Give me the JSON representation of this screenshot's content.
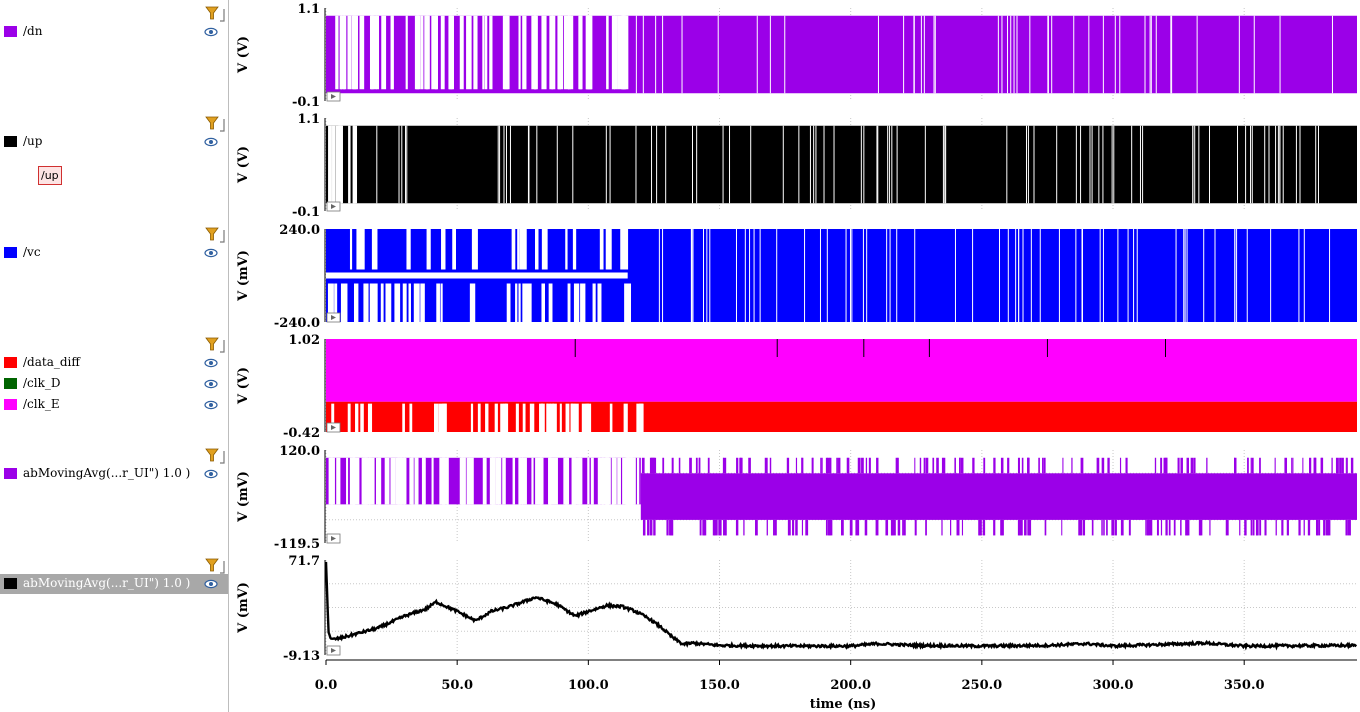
{
  "colors": {
    "dn": "#9b00e8",
    "up": "#000000",
    "vc": "#0000ff",
    "data_diff": "#ff0000",
    "clk_D": "#006400",
    "clk_E": "#ff00ff",
    "avg1": "#9b00e8",
    "avg2": "#000000",
    "grid": "#c8c8c8",
    "filter_icon": "#e0a020",
    "eye_icon": "#3060a0",
    "selected_row": "#a8a8a8"
  },
  "legend": {
    "rows": [
      {
        "key": "dn",
        "label": "/dn"
      },
      {
        "key": "up",
        "label": "/up"
      },
      {
        "key": "vc",
        "label": "/vc"
      },
      {
        "key": "data_diff",
        "label": "/data_diff"
      },
      {
        "key": "clk_D",
        "label": "/clk_D"
      },
      {
        "key": "clk_E",
        "label": "/clk_E"
      },
      {
        "key": "avg1",
        "label": "abMovingAvg(...r_UI\") 1.0 )"
      },
      {
        "key": "avg2",
        "label": "abMovingAvg(...r_UI\") 1.0 )",
        "selected": true
      }
    ],
    "up_tag": "/up",
    "icons": {
      "eye": "eye-icon",
      "filter": "filter-icon",
      "expand": "expand-arrow-icon"
    }
  },
  "chart_data": {
    "type": "line",
    "xlabel": "time (ns)",
    "x_ticks": [
      "0.0",
      "50.0",
      "100.0",
      "150.0",
      "200.0",
      "250.0",
      "300.0",
      "350.0"
    ],
    "x_tick_values": [
      0,
      50,
      100,
      150,
      200,
      250,
      300,
      350
    ],
    "xlim": [
      0,
      393
    ],
    "grid": true,
    "panels": [
      {
        "ylabel": "V (V)",
        "ytop": "1.1",
        "ybot": "-0.1",
        "ylim": [
          -0.1,
          1.1
        ],
        "series": [
          {
            "name": "/dn",
            "kind": "digital",
            "low": 0.0,
            "high": 1.0,
            "dense_after": 115
          }
        ]
      },
      {
        "ylabel": "V (V)",
        "ytop": "1.1",
        "ybot": "-0.1",
        "ylim": [
          -0.1,
          1.1
        ],
        "series": [
          {
            "name": "/up",
            "kind": "digital",
            "low": 0.0,
            "high": 1.0,
            "dense_after": 12
          }
        ]
      },
      {
        "ylabel": "V (mV)",
        "ytop": "240.0",
        "ybot": "-240.0",
        "ylim": [
          -240,
          240
        ],
        "series": [
          {
            "name": "/vc",
            "kind": "digital",
            "low": -240,
            "high": 240,
            "mid": 0,
            "dense_after": 115
          }
        ]
      },
      {
        "ylabel": "V (V)",
        "ytop": "1.02",
        "ybot": "-0.42",
        "ylim": [
          -0.42,
          1.02
        ],
        "series": [
          {
            "name": "/data_diff",
            "kind": "band",
            "low": -0.42,
            "high": 0.05
          },
          {
            "name": "/clk_D",
            "kind": "band",
            "low": -0.42,
            "high": 0.05
          },
          {
            "name": "/clk_E",
            "kind": "band",
            "low": 0.05,
            "high": 1.02
          }
        ]
      },
      {
        "ylabel": "V (mV)",
        "ytop": "120.0",
        "ybot": "-119.5",
        "ylim": [
          -119.5,
          120.0
        ],
        "series": [
          {
            "name": "abMovingAvg(...r_UI\") 1.0 )",
            "kind": "multilevel",
            "levels": [
              100,
              60,
              20,
              -20,
              -60,
              -100
            ]
          }
        ]
      },
      {
        "ylabel": "V (mV)",
        "ytop": "71.7",
        "ybot": "-9.13",
        "ylim": [
          -9.13,
          71.7
        ],
        "series": [
          {
            "name": "abMovingAvg(...r_UI\") 1.0 )",
            "kind": "analog",
            "x": [
              0,
              1,
              2,
              5,
              10,
              20,
              30,
              38,
              42,
              50,
              57,
              63,
              70,
              80,
              88,
              95,
              100,
              107,
              113,
              118,
              123,
              128,
              132,
              136,
              140,
              150,
              175,
              200,
              210,
              225,
              250,
              275,
              290,
              300,
              335,
              350,
              393
            ],
            "y": [
              70,
              10,
              4,
              5,
              8,
              14,
              24,
              30,
              36,
              28,
              20,
              28,
              32,
              40,
              34,
              24,
              28,
              33,
              32,
              28,
              22,
              14,
              6,
              0,
              1,
              -1,
              -1.5,
              -1.5,
              0.5,
              -1,
              -1.5,
              -1,
              0.5,
              -1.5,
              1,
              -1.5,
              -1
            ]
          }
        ]
      }
    ]
  }
}
